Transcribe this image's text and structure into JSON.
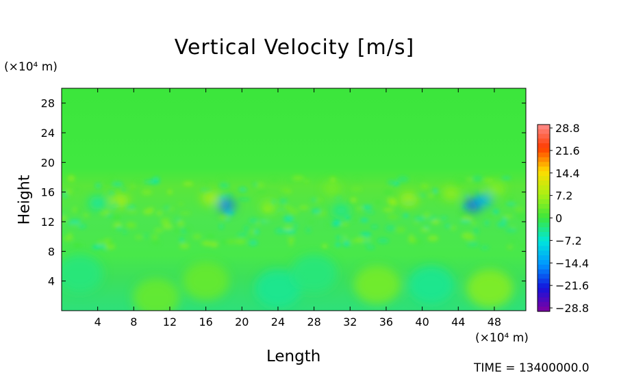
{
  "chart_data": {
    "type": "heatmap",
    "title": "Vertical Velocity [m/s]",
    "xlabel": "Length",
    "ylabel": "Height",
    "x_unit": "(×10⁴ m)",
    "y_unit": "(×10⁴ m)",
    "x_ticks": [
      4,
      8,
      12,
      16,
      20,
      24,
      28,
      32,
      36,
      40,
      44,
      48
    ],
    "y_ticks": [
      4,
      8,
      12,
      16,
      20,
      24,
      28
    ],
    "xlim": [
      0,
      51.5
    ],
    "ylim": [
      0,
      30
    ],
    "colorbar": {
      "ticks": [
        "28.8",
        "21.6",
        "14.4",
        "7.2",
        "0",
        "−7.2",
        "−14.4",
        "−21.6",
        "−28.8"
      ],
      "range": [
        -28.8,
        28.8
      ]
    },
    "features": [
      {
        "x": 6.5,
        "y": 14.8,
        "value": 8
      },
      {
        "x": 16.5,
        "y": 15.2,
        "value": 8
      },
      {
        "x": 18.3,
        "y": 14.2,
        "value": -16
      },
      {
        "x": 23.0,
        "y": 14.0,
        "value": 5
      },
      {
        "x": 30.0,
        "y": 16.5,
        "value": 4
      },
      {
        "x": 38.5,
        "y": 15.0,
        "value": 8
      },
      {
        "x": 43.2,
        "y": 15.8,
        "value": 6
      },
      {
        "x": 45.7,
        "y": 14.3,
        "value": -18
      },
      {
        "x": 46.8,
        "y": 14.9,
        "value": -12
      },
      {
        "x": 48.2,
        "y": 16.5,
        "value": 5
      },
      {
        "x": 16.0,
        "y": 4.0,
        "value": 3
      },
      {
        "x": 35.0,
        "y": 3.5,
        "value": 4
      },
      {
        "x": 47.5,
        "y": 3.0,
        "value": 5
      },
      {
        "x": 10.5,
        "y": 1.8,
        "value": 3
      },
      {
        "x": 24.0,
        "y": 3.0,
        "value": -4
      },
      {
        "x": 41.0,
        "y": 3.5,
        "value": -4
      },
      {
        "x": 2.0,
        "y": 5.0,
        "value": -3
      },
      {
        "x": 28.0,
        "y": 5.0,
        "value": -3
      },
      {
        "x": 4.0,
        "y": 14.5,
        "value": -5
      },
      {
        "x": 31.0,
        "y": 13.5,
        "value": -4
      }
    ]
  },
  "time_label": "TIME = 13400000.0"
}
